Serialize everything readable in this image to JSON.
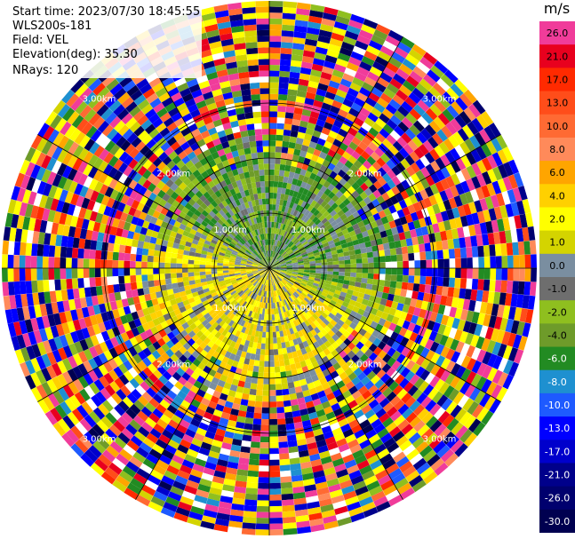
{
  "header": {
    "start_time": "Start time: 2023/07/30 18:45:55",
    "instrument": "WLS200s-181",
    "field": "Field: VEL",
    "elevation": "Elevation(deg): 35.30",
    "nrays": "NRays: 120"
  },
  "colorbar": {
    "unit": "m/s",
    "ticks": [
      "26.0",
      "21.0",
      "17.0",
      "13.0",
      "10.0",
      "8.0",
      "6.0",
      "4.0",
      "2.0",
      "1.0",
      "0.0",
      "-1.0",
      "-2.0",
      "-4.0",
      "-6.0",
      "-8.0",
      "-10.0",
      "-13.0",
      "-17.0",
      "-21.0",
      "-26.0",
      "-30.0"
    ],
    "colors": [
      "#f03c9a",
      "#e8001e",
      "#ff2a00",
      "#ff4d1a",
      "#ff6a33",
      "#ff8a5a",
      "#ffa500",
      "#ffd000",
      "#ffff00",
      "#d4d400",
      "#7a8ea0",
      "#6e6e6e",
      "#8fbf1f",
      "#6e9b2a",
      "#228b22",
      "#1e90d0",
      "#1e5aff",
      "#0000ff",
      "#0000cc",
      "#00008b",
      "#00006e",
      "#000050"
    ]
  },
  "chart_data": {
    "type": "heatmap",
    "subtype": "polar PPI scan",
    "field": "VEL",
    "unit": "m/s",
    "nrays": 120,
    "range_ring_labels": [
      "1.00km",
      "2.00km",
      "3.00km",
      "1.00km",
      "2.00km",
      "3.00km",
      "1.00km",
      "2.00km",
      "3.00km",
      "1.00km",
      "2.00km",
      "3.00km"
    ],
    "range_rings_km": [
      1,
      2,
      3
    ],
    "color_scale_min": -30.0,
    "color_scale_max": 26.0
  }
}
